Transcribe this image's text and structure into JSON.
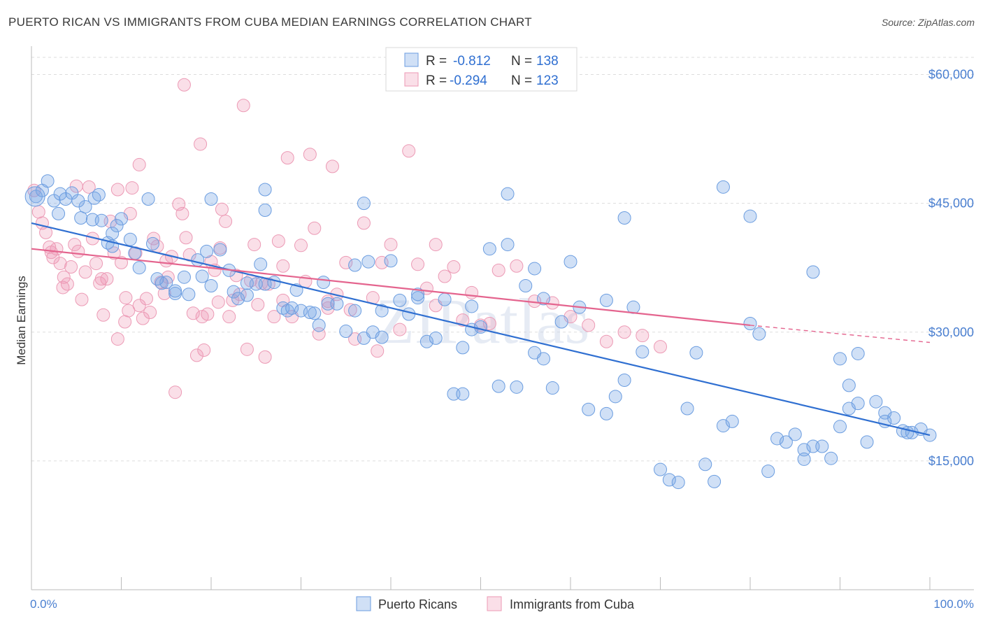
{
  "title": "PUERTO RICAN VS IMMIGRANTS FROM CUBA MEDIAN EARNINGS CORRELATION CHART",
  "source": "Source: ZipAtlas.com",
  "watermark": "ZIPatlas",
  "colors": {
    "blue_fill": "rgba(120,165,230,0.35)",
    "blue_stroke": "#6b9de0",
    "blue_line": "#2f6fd1",
    "pink_fill": "rgba(240,150,180,0.3)",
    "pink_stroke": "#ec9ab5",
    "pink_line": "#e4648e",
    "axis_text": "#4a7fd0",
    "grid": "#dddddd"
  },
  "legend_top": {
    "rows": [
      {
        "r_label": "R =",
        "r_value": "-0.812",
        "n_label": "N =",
        "n_value": "138"
      },
      {
        "r_label": "R =",
        "r_value": "-0.294",
        "n_label": "N =",
        "n_value": "123"
      }
    ]
  },
  "legend_bottom": [
    "Puerto Ricans",
    "Immigrants from Cuba"
  ],
  "chart_data": {
    "type": "scatter",
    "title": "PUERTO RICAN VS IMMIGRANTS FROM CUBA MEDIAN EARNINGS CORRELATION CHART",
    "xlabel": "",
    "ylabel": "Median Earnings",
    "xlim": [
      0,
      100
    ],
    "ylim": [
      0,
      62000
    ],
    "x_tick_labels": [
      "0.0%",
      "100.0%"
    ],
    "y_ticks": [
      15000,
      30000,
      45000,
      60000
    ],
    "y_tick_labels": [
      "$15,000",
      "$30,000",
      "$45,000",
      "$60,000"
    ],
    "grid": true,
    "legend_position": "top-center",
    "series": [
      {
        "name": "Puerto Ricans",
        "r": -0.812,
        "n": 138,
        "trend": {
          "x": [
            0,
            100
          ],
          "y": [
            42700,
            18000
          ]
        },
        "points": [
          [
            0.5,
            45800
          ],
          [
            1.2,
            46500
          ],
          [
            1.8,
            47600
          ],
          [
            2.5,
            45300
          ],
          [
            3.2,
            46100
          ],
          [
            3.8,
            45500
          ],
          [
            4.5,
            46200
          ],
          [
            5.2,
            45300
          ],
          [
            6,
            44600
          ],
          [
            7.5,
            46000
          ],
          [
            5.5,
            43300
          ],
          [
            6.8,
            43100
          ],
          [
            7.8,
            43000
          ],
          [
            9,
            41500
          ],
          [
            10,
            43200
          ],
          [
            13,
            45500
          ],
          [
            11,
            40800
          ],
          [
            8.5,
            40400
          ],
          [
            9,
            40000
          ],
          [
            11.5,
            39200
          ],
          [
            12,
            37500
          ],
          [
            13.5,
            40300
          ],
          [
            14.5,
            35700
          ],
          [
            15,
            35800
          ],
          [
            16,
            34500
          ],
          [
            17,
            36400
          ],
          [
            17.5,
            34400
          ],
          [
            18.5,
            38400
          ],
          [
            19,
            36500
          ],
          [
            20,
            35400
          ],
          [
            16,
            34800
          ],
          [
            21,
            39600
          ],
          [
            22,
            37200
          ],
          [
            22.5,
            34700
          ],
          [
            23,
            33900
          ],
          [
            24,
            34300
          ],
          [
            25,
            35600
          ],
          [
            25.5,
            37900
          ],
          [
            26,
            35600
          ],
          [
            27,
            35800
          ],
          [
            28,
            32800
          ],
          [
            28.5,
            32500
          ],
          [
            29,
            32800
          ],
          [
            30,
            32500
          ],
          [
            31,
            32300
          ],
          [
            31.5,
            32200
          ],
          [
            32,
            30800
          ],
          [
            32.5,
            35800
          ],
          [
            33,
            33300
          ],
          [
            34,
            33300
          ],
          [
            35,
            30100
          ],
          [
            36,
            32500
          ],
          [
            37,
            29300
          ],
          [
            37.5,
            38200
          ],
          [
            38,
            30000
          ],
          [
            39,
            29400
          ],
          [
            40,
            38300
          ],
          [
            41,
            33700
          ],
          [
            42,
            32100
          ],
          [
            43,
            34000
          ],
          [
            44,
            28900
          ],
          [
            45,
            29300
          ],
          [
            46,
            33800
          ],
          [
            47,
            22800
          ],
          [
            48,
            22800
          ],
          [
            49,
            30300
          ],
          [
            50,
            30600
          ],
          [
            51,
            39700
          ],
          [
            52,
            23700
          ],
          [
            53,
            40200
          ],
          [
            55,
            35400
          ],
          [
            56,
            37400
          ],
          [
            57,
            33900
          ],
          [
            58,
            23500
          ],
          [
            60,
            38200
          ],
          [
            62,
            21000
          ],
          [
            64,
            33700
          ],
          [
            65,
            22500
          ],
          [
            66,
            24400
          ],
          [
            67,
            32900
          ],
          [
            68,
            27700
          ],
          [
            70,
            14000
          ],
          [
            71,
            12800
          ],
          [
            73,
            21100
          ],
          [
            74,
            27600
          ],
          [
            75,
            14600
          ],
          [
            76,
            12600
          ],
          [
            77,
            19100
          ],
          [
            78,
            19600
          ],
          [
            80,
            31000
          ],
          [
            81,
            29800
          ],
          [
            82,
            13800
          ],
          [
            83,
            17600
          ],
          [
            84,
            17200
          ],
          [
            85,
            18100
          ],
          [
            86,
            16300
          ],
          [
            87,
            16700
          ],
          [
            88,
            16700
          ],
          [
            89,
            15300
          ],
          [
            90,
            19000
          ],
          [
            91,
            21100
          ],
          [
            92,
            21700
          ],
          [
            93,
            17200
          ],
          [
            94,
            21900
          ],
          [
            95,
            20600
          ],
          [
            96,
            20000
          ],
          [
            97,
            18500
          ],
          [
            98,
            18300
          ],
          [
            99,
            18700
          ],
          [
            100,
            18000
          ],
          [
            77,
            46900
          ],
          [
            80,
            43500
          ],
          [
            87,
            37000
          ],
          [
            90,
            26900
          ],
          [
            92,
            27500
          ],
          [
            53,
            46100
          ],
          [
            20,
            45500
          ],
          [
            37,
            45000
          ],
          [
            26,
            46600
          ],
          [
            66,
            43300
          ],
          [
            61,
            32900
          ],
          [
            59,
            31200
          ],
          [
            43,
            34400
          ],
          [
            54,
            23600
          ],
          [
            86,
            15200
          ],
          [
            72,
            12500
          ],
          [
            39,
            32500
          ],
          [
            48,
            28200
          ],
          [
            57,
            26900
          ],
          [
            64,
            20500
          ],
          [
            26,
            44200
          ],
          [
            9.5,
            42400
          ],
          [
            7,
            45600
          ],
          [
            3,
            43800
          ],
          [
            19.5,
            39400
          ],
          [
            14,
            36200
          ],
          [
            24,
            35700
          ],
          [
            29.5,
            34900
          ],
          [
            36,
            37800
          ],
          [
            49,
            33000
          ],
          [
            56,
            27600
          ],
          [
            95,
            19600
          ],
          [
            91,
            23800
          ],
          [
            97.5,
            18300
          ]
        ]
      },
      {
        "name": "Immigrants from Cuba",
        "r": -0.294,
        "n": 123,
        "trend": {
          "x": [
            0,
            80
          ],
          "y": [
            39700,
            30800
          ]
        },
        "trend_dashed": {
          "x": [
            80,
            100
          ],
          "y": [
            30800,
            28800
          ]
        },
        "points": [
          [
            0.3,
            46500
          ],
          [
            0.8,
            44000
          ],
          [
            1.2,
            42700
          ],
          [
            1.6,
            41600
          ],
          [
            2,
            39900
          ],
          [
            2.4,
            38700
          ],
          [
            2.8,
            39700
          ],
          [
            3.2,
            38000
          ],
          [
            3.6,
            36400
          ],
          [
            4,
            35600
          ],
          [
            4.4,
            37600
          ],
          [
            4.8,
            40200
          ],
          [
            5.2,
            39400
          ],
          [
            5.6,
            33800
          ],
          [
            6,
            37000
          ],
          [
            6.4,
            46900
          ],
          [
            6.8,
            40900
          ],
          [
            7.2,
            38000
          ],
          [
            7.6,
            35700
          ],
          [
            8,
            32000
          ],
          [
            8.4,
            36200
          ],
          [
            8.8,
            42900
          ],
          [
            9.2,
            39200
          ],
          [
            9.6,
            29200
          ],
          [
            10,
            38100
          ],
          [
            10.4,
            31200
          ],
          [
            10.8,
            32500
          ],
          [
            11.2,
            46800
          ],
          [
            11.6,
            39200
          ],
          [
            12,
            33100
          ],
          [
            12.4,
            31600
          ],
          [
            12.8,
            33900
          ],
          [
            13.2,
            32300
          ],
          [
            13.6,
            40900
          ],
          [
            14,
            40000
          ],
          [
            14.4,
            35800
          ],
          [
            14.8,
            34500
          ],
          [
            15.2,
            36400
          ],
          [
            15.6,
            38800
          ],
          [
            16,
            23000
          ],
          [
            16.4,
            44900
          ],
          [
            16.8,
            43800
          ],
          [
            17.2,
            41000
          ],
          [
            17.6,
            39000
          ],
          [
            18,
            32200
          ],
          [
            18.4,
            27300
          ],
          [
            18.8,
            51900
          ],
          [
            19.2,
            27900
          ],
          [
            19.6,
            32100
          ],
          [
            20,
            38200
          ],
          [
            20.4,
            37200
          ],
          [
            20.8,
            33500
          ],
          [
            21.2,
            44300
          ],
          [
            21.6,
            42900
          ],
          [
            22,
            31800
          ],
          [
            22.4,
            33700
          ],
          [
            22.8,
            36600
          ],
          [
            23.2,
            34400
          ],
          [
            23.6,
            56400
          ],
          [
            24,
            28000
          ],
          [
            24.4,
            36000
          ],
          [
            24.8,
            40200
          ],
          [
            25.2,
            33200
          ],
          [
            25.6,
            35700
          ],
          [
            26,
            27100
          ],
          [
            26.4,
            35600
          ],
          [
            27,
            31800
          ],
          [
            27.5,
            40600
          ],
          [
            28,
            33700
          ],
          [
            28.5,
            50300
          ],
          [
            29,
            31800
          ],
          [
            30,
            40100
          ],
          [
            30.5,
            35900
          ],
          [
            31,
            50700
          ],
          [
            31.5,
            42100
          ],
          [
            32,
            29800
          ],
          [
            33,
            33600
          ],
          [
            33.5,
            49300
          ],
          [
            34,
            34400
          ],
          [
            35,
            38100
          ],
          [
            35.5,
            32600
          ],
          [
            36,
            29200
          ],
          [
            37,
            42700
          ],
          [
            38,
            34000
          ],
          [
            38.5,
            27800
          ],
          [
            39,
            38100
          ],
          [
            40,
            40200
          ],
          [
            41,
            30300
          ],
          [
            42,
            51100
          ],
          [
            43,
            37900
          ],
          [
            44,
            35100
          ],
          [
            45,
            40200
          ],
          [
            46,
            36500
          ],
          [
            47,
            37600
          ],
          [
            48,
            31400
          ],
          [
            49,
            34600
          ],
          [
            50,
            30800
          ],
          [
            51,
            31000
          ],
          [
            52,
            37200
          ],
          [
            54,
            37700
          ],
          [
            56,
            33600
          ],
          [
            58,
            33400
          ],
          [
            60,
            31800
          ],
          [
            62,
            30800
          ],
          [
            64,
            28900
          ],
          [
            66,
            30000
          ],
          [
            68,
            29600
          ],
          [
            70,
            28300
          ],
          [
            17,
            58800
          ],
          [
            12,
            49500
          ],
          [
            5,
            47000
          ],
          [
            11,
            43800
          ],
          [
            2.2,
            39300
          ],
          [
            7.8,
            36200
          ],
          [
            9.6,
            46600
          ],
          [
            15,
            38300
          ],
          [
            21,
            39800
          ],
          [
            28,
            37700
          ],
          [
            33,
            32800
          ],
          [
            3.5,
            35200
          ],
          [
            10.5,
            34000
          ],
          [
            19,
            31800
          ],
          [
            45,
            33100
          ]
        ]
      }
    ]
  }
}
